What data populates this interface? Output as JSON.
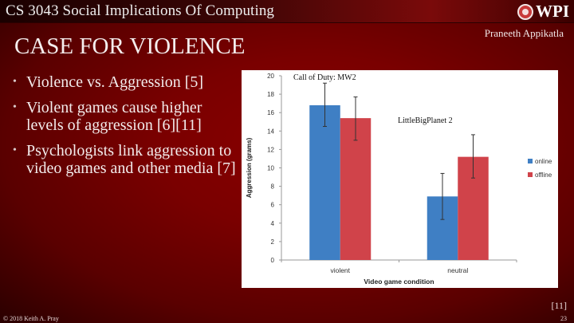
{
  "header": {
    "course_title": "CS 3043 Social Implications Of Computing",
    "logo_text": "WPI",
    "logo_icon": "wpi-seal-icon"
  },
  "slide": {
    "title": "CASE FOR VIOLENCE",
    "author": "Praneeth Appikatla",
    "bullets": [
      "Violence vs. Aggression [5]",
      "Violent games cause higher levels of aggression [6][11]",
      "Psychologists link aggression to video games and other media [7]"
    ],
    "citation": "[11]"
  },
  "footer": {
    "copyright": "© 2018 Keith A. Pray",
    "page_number": "23"
  },
  "colors": {
    "online": "#3f7fc4",
    "offline": "#d0434a",
    "background": "#7a0000"
  },
  "chart_data": {
    "type": "bar",
    "title": "",
    "xlabel": "Video game condition",
    "ylabel": "Aggression (grams)",
    "ylim": [
      0,
      20
    ],
    "yticks": [
      0,
      2,
      4,
      6,
      8,
      10,
      12,
      14,
      16,
      18,
      20
    ],
    "grid": false,
    "legend_position": "right",
    "categories": [
      "violent",
      "neutral"
    ],
    "series": [
      {
        "name": "online",
        "color": "#3f7fc4",
        "values": [
          16.8,
          6.9
        ],
        "error_low": [
          14.5,
          4.4
        ],
        "error_high": [
          19.2,
          9.4
        ]
      },
      {
        "name": "offline",
        "color": "#d0434a",
        "values": [
          15.4,
          11.2
        ],
        "error_low": [
          13.0,
          8.9
        ],
        "error_high": [
          17.7,
          13.6
        ]
      }
    ],
    "annotations": [
      {
        "text": "Call of Duty: MW2",
        "near": "violent"
      },
      {
        "text": "LittleBigPlanet 2",
        "near": "neutral"
      }
    ]
  }
}
